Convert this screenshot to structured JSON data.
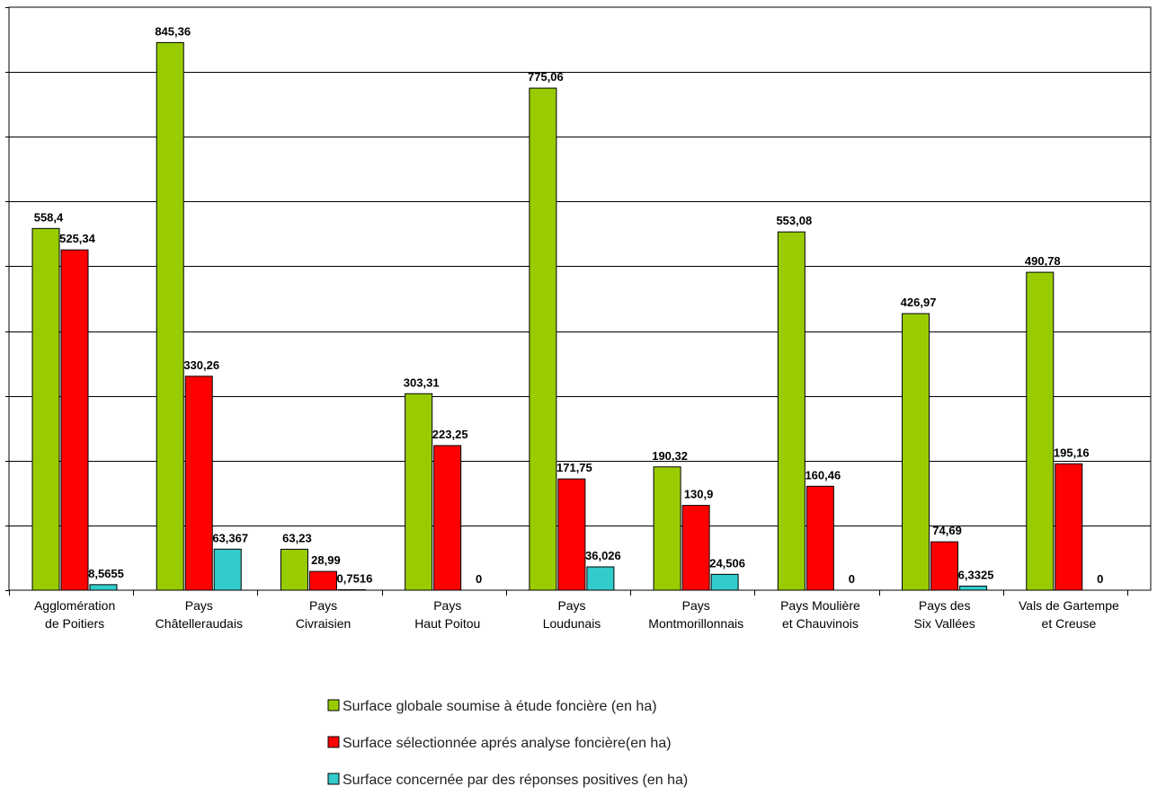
{
  "chart_data": {
    "type": "bar",
    "categories": [
      [
        "Agglomération",
        "de Poitiers"
      ],
      [
        "Pays",
        "Châtelleraudais"
      ],
      [
        "Pays",
        "Civraisien"
      ],
      [
        "Pays",
        "Haut Poitou"
      ],
      [
        "Pays",
        "Loudunais"
      ],
      [
        "Pays",
        "Montmorillonnais"
      ],
      [
        "Pays Moulière",
        "et Chauvinois"
      ],
      [
        "Pays des",
        "Six Vallées"
      ],
      [
        "Vals de Gartempe",
        "et Creuse"
      ]
    ],
    "series": [
      {
        "name": "Surface globale soumise à étude foncière (en ha)",
        "color": "#99cc00",
        "values": [
          558.4,
          845.36,
          63.23,
          303.31,
          775.06,
          190.32,
          553.08,
          426.97,
          490.78
        ],
        "labels": [
          "558,4",
          "845,36",
          "63,23",
          "303,31",
          "775,06",
          "190,32",
          "553,08",
          "426,97",
          "490,78"
        ]
      },
      {
        "name": "Surface sélectionnée aprés analyse foncière(en ha)",
        "color": "#ff0000",
        "values": [
          525.34,
          330.26,
          28.99,
          223.25,
          171.75,
          130.9,
          160.46,
          74.69,
          195.16
        ],
        "labels": [
          "525,34",
          "330,26",
          "28,99",
          "223,25",
          "171,75",
          "130,9",
          "160,46",
          "74,69",
          "195,16"
        ]
      },
      {
        "name": "Surface concernée par des réponses positives (en ha)",
        "color": "#33cccc",
        "values": [
          8.5655,
          63.367,
          0.7516,
          0,
          36.026,
          24.506,
          0,
          6.3325,
          0
        ],
        "labels": [
          "8,5655",
          "63,367",
          "0,7516",
          "0",
          "36,026",
          "24,506",
          "0",
          "6,3325",
          "0"
        ]
      }
    ],
    "ylim": [
      0,
      900
    ],
    "grid": true,
    "legend_position": "bottom"
  }
}
